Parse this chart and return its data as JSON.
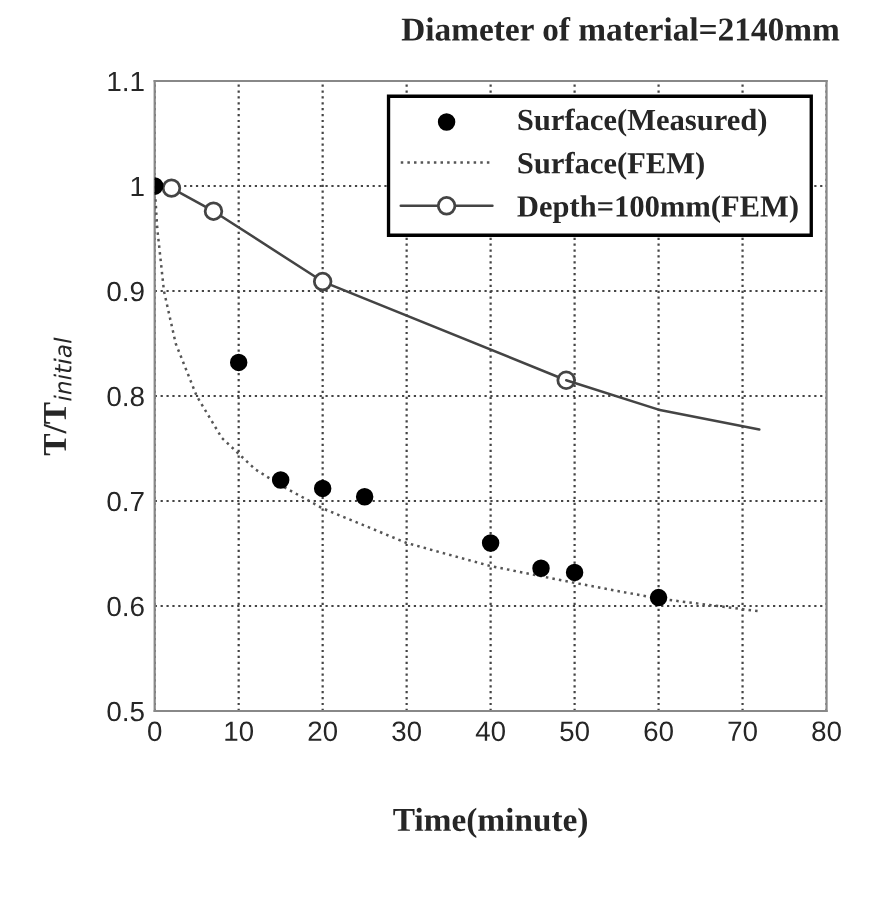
{
  "chart_data": {
    "type": "line",
    "title": "Diameter of material=2140mm",
    "xlabel": "Time(minute)",
    "ylabel": "T/T$_{initial}$",
    "xlim": [
      0,
      80
    ],
    "xticks": [
      0,
      10,
      20,
      30,
      40,
      50,
      60,
      70,
      80
    ],
    "ylim": [
      0.5,
      1.1
    ],
    "yticks": [
      0.5,
      0.6,
      0.7,
      0.8,
      0.9,
      1,
      1.1
    ],
    "grid": true,
    "legend": "top right",
    "series": [
      {
        "name": "Surface(Measured)",
        "type": "scatter",
        "marker": "circle",
        "color": "#000000",
        "x": [
          0,
          10,
          15,
          20,
          25,
          40,
          46,
          50,
          60
        ],
        "values": [
          1.0,
          0.832,
          0.72,
          0.712,
          0.704,
          0.66,
          0.636,
          0.632,
          0.608
        ]
      },
      {
        "name": "Surface(FEM)",
        "type": "line",
        "line_style": "dotted",
        "color": "#555555",
        "x": [
          0,
          0.3,
          1.1,
          2.5,
          5,
          8,
          12,
          15,
          20,
          30,
          40,
          50,
          60,
          72
        ],
        "values": [
          1.0,
          0.96,
          0.9,
          0.85,
          0.8,
          0.76,
          0.73,
          0.715,
          0.693,
          0.66,
          0.638,
          0.622,
          0.607,
          0.595
        ]
      },
      {
        "name": "Depth=100mm(FEM)",
        "marker": "circle",
        "line_style": "solid",
        "color": "#444444",
        "x": [
          2,
          7,
          20,
          49
        ],
        "values": [
          0.998,
          0.976,
          0.909,
          0.815
        ]
      },
      {
        "line_style": "solid",
        "color": "#444444",
        "x": [
          49,
          60,
          72
        ],
        "values": [
          0.815,
          0.787,
          0.768
        ]
      }
    ]
  }
}
